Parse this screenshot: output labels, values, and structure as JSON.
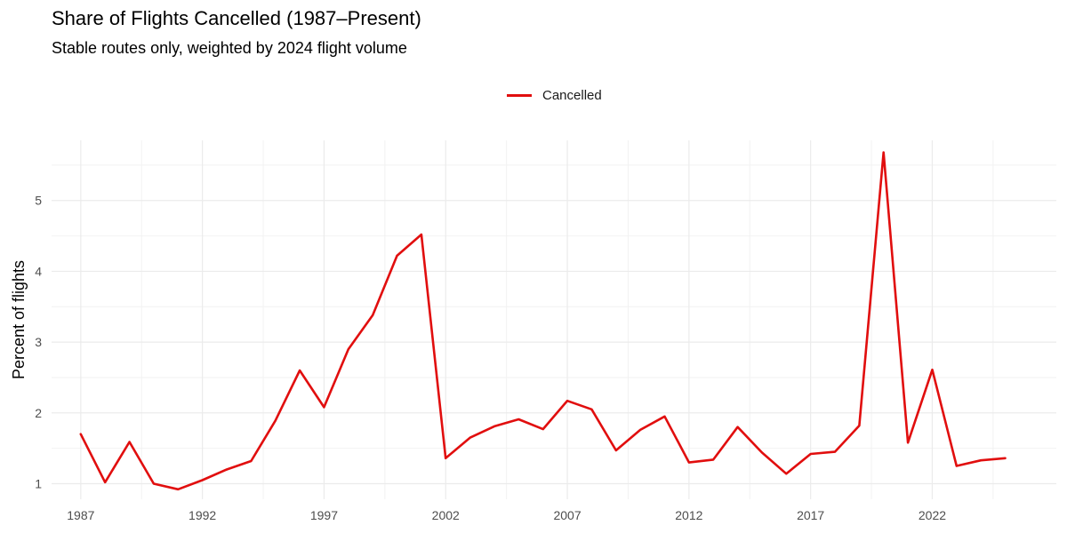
{
  "chart_data": {
    "type": "line",
    "title": "Share of Flights Cancelled (1987–Present)",
    "subtitle": "Stable routes only, weighted by 2024 flight volume",
    "xlabel": "",
    "ylabel": "Percent of flights",
    "legend_position": "top",
    "grid": true,
    "xlim": [
      1985.8,
      2027.1
    ],
    "ylim": [
      0.78,
      5.85
    ],
    "x_ticks": [
      1987,
      1992,
      1997,
      2002,
      2007,
      2012,
      2017,
      2022
    ],
    "y_ticks": [
      1,
      2,
      3,
      4,
      5
    ],
    "series": [
      {
        "name": "Cancelled",
        "color": "#e10e0e",
        "x": [
          1987,
          1988,
          1989,
          1990,
          1991,
          1992,
          1993,
          1994,
          1995,
          1996,
          1997,
          1998,
          1999,
          2000,
          2001,
          2002,
          2003,
          2004,
          2005,
          2006,
          2007,
          2008,
          2009,
          2010,
          2011,
          2012,
          2013,
          2014,
          2015,
          2016,
          2017,
          2018,
          2019,
          2020,
          2021,
          2022,
          2023,
          2024,
          2025
        ],
        "y": [
          1.7,
          1.02,
          1.59,
          1.0,
          0.92,
          1.05,
          1.2,
          1.32,
          1.89,
          2.6,
          2.08,
          2.9,
          3.38,
          4.22,
          4.52,
          1.36,
          1.65,
          1.81,
          1.91,
          1.77,
          2.17,
          2.05,
          1.47,
          1.76,
          1.95,
          1.3,
          1.34,
          1.8,
          1.44,
          1.14,
          1.42,
          1.45,
          1.82,
          5.68,
          1.58,
          2.61,
          1.25,
          1.33,
          1.36
        ]
      }
    ]
  }
}
